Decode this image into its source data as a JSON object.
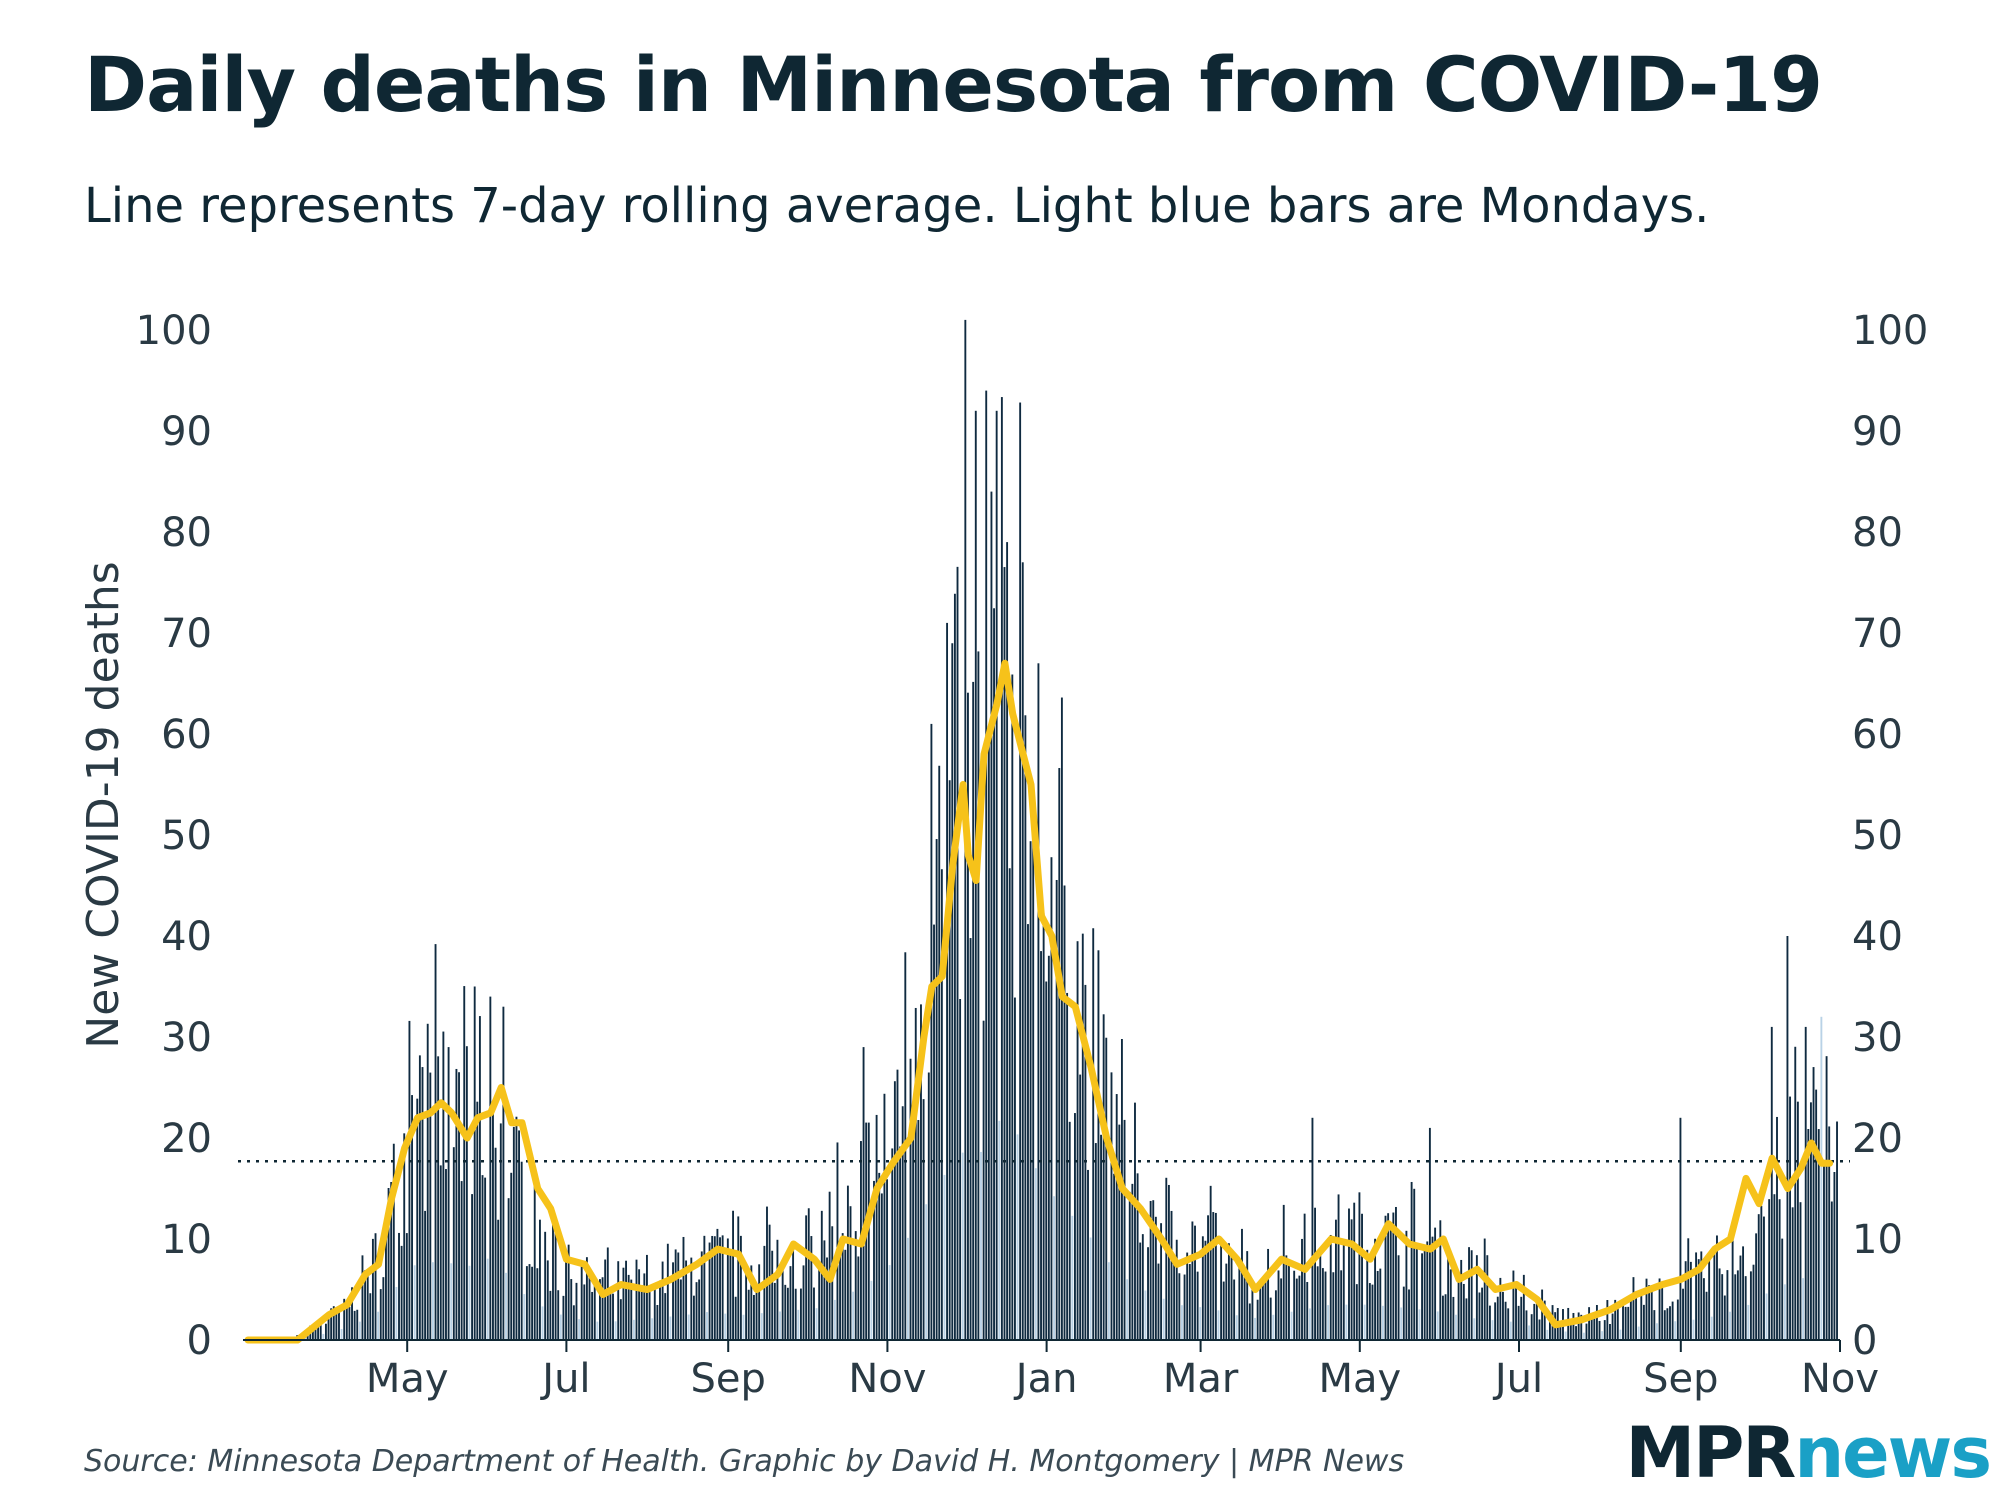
{
  "title": "Daily deaths in Minnesota from COVID-19",
  "subtitle": "Line represents 7-day rolling average. Light blue bars are Mondays.",
  "source": "Source: Minnesota Department of Health. Graphic by David H. Montgomery | MPR News",
  "logo": {
    "part1": "MPR",
    "part2": "news"
  },
  "colors": {
    "bar": "#0f2a40",
    "monday_bar": "#b9d2e6",
    "line": "#f6c21a",
    "text": "#0f2733",
    "reference_line": "#0f2733",
    "logo_news": "#1aa0c6"
  },
  "chart_data": {
    "type": "bar",
    "title": "Daily deaths in Minnesota from COVID-19",
    "subtitle": "Line represents 7-day rolling average. Light blue bars are Mondays.",
    "ylabel": "New COVID-19 deaths",
    "xlabel": "",
    "ylim": [
      0,
      100
    ],
    "y_ticks": [
      "0",
      "10",
      "20",
      "30",
      "40",
      "50",
      "60",
      "70",
      "80",
      "90",
      "100"
    ],
    "x_ticks": [
      {
        "label": "May",
        "date": "2020-05-01"
      },
      {
        "label": "Jul",
        "date": "2020-07-01"
      },
      {
        "label": "Sep",
        "date": "2020-09-01"
      },
      {
        "label": "Nov",
        "date": "2020-11-01"
      },
      {
        "label": "Jan",
        "date": "2021-01-01"
      },
      {
        "label": "Mar",
        "date": "2021-03-01"
      },
      {
        "label": "May",
        "date": "2021-05-01"
      },
      {
        "label": "Jul",
        "date": "2021-07-01"
      },
      {
        "label": "Sep",
        "date": "2021-09-01"
      },
      {
        "label": "Nov",
        "date": "2021-11-01"
      }
    ],
    "x_range": [
      "2020-03-01",
      "2021-11-01"
    ],
    "reference_line": 17.7,
    "right_axis": true,
    "grid": false,
    "series": [
      {
        "kind": "bars",
        "start_date": "2020-03-01",
        "monday_bars_highlighted": true,
        "estimated_profile": [
          [
            "2020-03-01",
            0
          ],
          [
            "2020-03-20",
            0.3
          ],
          [
            "2020-04-01",
            2
          ],
          [
            "2020-04-10",
            4
          ],
          [
            "2020-04-20",
            8
          ],
          [
            "2020-04-28",
            16
          ],
          [
            "2020-05-05",
            22
          ],
          [
            "2020-05-15",
            22
          ],
          [
            "2020-05-25",
            21
          ],
          [
            "2020-06-01",
            23
          ],
          [
            "2020-06-08",
            19
          ],
          [
            "2020-06-15",
            13
          ],
          [
            "2020-06-25",
            8
          ],
          [
            "2020-07-05",
            6
          ],
          [
            "2020-07-15",
            5
          ],
          [
            "2020-08-01",
            6
          ],
          [
            "2020-08-15",
            7
          ],
          [
            "2020-08-25",
            8
          ],
          [
            "2020-09-05",
            7
          ],
          [
            "2020-09-20",
            8
          ],
          [
            "2020-10-05",
            9
          ],
          [
            "2020-10-20",
            14
          ],
          [
            "2020-10-31",
            19
          ],
          [
            "2020-11-10",
            30
          ],
          [
            "2020-11-20",
            44
          ],
          [
            "2020-11-30",
            53
          ],
          [
            "2020-12-05",
            50
          ],
          [
            "2020-12-10",
            58
          ],
          [
            "2020-12-16",
            64
          ],
          [
            "2020-12-22",
            57
          ],
          [
            "2021-01-01",
            43
          ],
          [
            "2021-01-10",
            36
          ],
          [
            "2021-01-18",
            29
          ],
          [
            "2021-01-28",
            19
          ],
          [
            "2021-02-08",
            14
          ],
          [
            "2021-02-20",
            10
          ],
          [
            "2021-03-05",
            9
          ],
          [
            "2021-03-20",
            6
          ],
          [
            "2021-04-05",
            8
          ],
          [
            "2021-04-20",
            10
          ],
          [
            "2021-05-05",
            10
          ],
          [
            "2021-05-20",
            9
          ],
          [
            "2021-06-01",
            8
          ],
          [
            "2021-06-15",
            6
          ],
          [
            "2021-07-01",
            5
          ],
          [
            "2021-07-10",
            3
          ],
          [
            "2021-07-25",
            2
          ],
          [
            "2021-08-10",
            3
          ],
          [
            "2021-08-25",
            5
          ],
          [
            "2021-09-10",
            6
          ],
          [
            "2021-09-25",
            9
          ],
          [
            "2021-10-08",
            15
          ],
          [
            "2021-10-20",
            18
          ],
          [
            "2021-10-28",
            19
          ],
          [
            "2021-10-31",
            18
          ]
        ],
        "peaks": [
          [
            "2020-05-27",
            35
          ],
          [
            "2020-06-02",
            34
          ],
          [
            "2020-06-07",
            33
          ],
          [
            "2020-05-17",
            29
          ],
          [
            "2020-10-23",
            29
          ],
          [
            "2020-11-18",
            61
          ],
          [
            "2020-11-24",
            71
          ],
          [
            "2020-12-01",
            101
          ],
          [
            "2020-12-05",
            92
          ],
          [
            "2020-12-09",
            94
          ],
          [
            "2020-12-11",
            84
          ],
          [
            "2020-12-13",
            92
          ],
          [
            "2020-12-17",
            79
          ],
          [
            "2020-12-23",
            77
          ],
          [
            "2020-12-29",
            67
          ],
          [
            "2021-01-08",
            45
          ],
          [
            "2021-04-13",
            22
          ],
          [
            "2021-05-28",
            21
          ],
          [
            "2021-09-01",
            22
          ],
          [
            "2021-10-06",
            31
          ],
          [
            "2021-10-12",
            40
          ],
          [
            "2021-10-19",
            31
          ],
          [
            "2021-10-25",
            32
          ]
        ]
      },
      {
        "kind": "line",
        "label": "7-day rolling average",
        "points": [
          [
            "2020-03-01",
            0
          ],
          [
            "2020-03-20",
            0
          ],
          [
            "2020-04-01",
            2.5
          ],
          [
            "2020-04-08",
            3.5
          ],
          [
            "2020-04-15",
            6.5
          ],
          [
            "2020-04-20",
            7.5
          ],
          [
            "2020-04-25",
            14
          ],
          [
            "2020-04-30",
            19
          ],
          [
            "2020-05-05",
            22
          ],
          [
            "2020-05-10",
            22.5
          ],
          [
            "2020-05-14",
            23.5
          ],
          [
            "2020-05-18",
            22.5
          ],
          [
            "2020-05-24",
            20
          ],
          [
            "2020-05-28",
            22
          ],
          [
            "2020-06-02",
            22.5
          ],
          [
            "2020-06-06",
            25
          ],
          [
            "2020-06-10",
            21.5
          ],
          [
            "2020-06-14",
            21.5
          ],
          [
            "2020-06-20",
            15
          ],
          [
            "2020-06-25",
            13
          ],
          [
            "2020-07-01",
            8
          ],
          [
            "2020-07-08",
            7.5
          ],
          [
            "2020-07-15",
            4.5
          ],
          [
            "2020-07-22",
            5.5
          ],
          [
            "2020-08-01",
            5
          ],
          [
            "2020-08-10",
            6
          ],
          [
            "2020-08-20",
            7.5
          ],
          [
            "2020-08-28",
            9
          ],
          [
            "2020-09-05",
            8.5
          ],
          [
            "2020-09-12",
            5
          ],
          [
            "2020-09-20",
            6.5
          ],
          [
            "2020-09-26",
            9.5
          ],
          [
            "2020-10-04",
            8
          ],
          [
            "2020-10-10",
            6
          ],
          [
            "2020-10-15",
            10
          ],
          [
            "2020-10-22",
            9.5
          ],
          [
            "2020-10-28",
            15
          ],
          [
            "2020-11-03",
            17.5
          ],
          [
            "2020-11-10",
            20
          ],
          [
            "2020-11-15",
            30
          ],
          [
            "2020-11-18",
            35
          ],
          [
            "2020-11-22",
            36
          ],
          [
            "2020-11-26",
            47
          ],
          [
            "2020-11-30",
            55
          ],
          [
            "2020-12-02",
            48
          ],
          [
            "2020-12-05",
            45.5
          ],
          [
            "2020-12-08",
            58
          ],
          [
            "2020-12-13",
            63
          ],
          [
            "2020-12-16",
            67
          ],
          [
            "2020-12-19",
            62
          ],
          [
            "2020-12-22",
            59
          ],
          [
            "2020-12-26",
            55
          ],
          [
            "2020-12-30",
            42
          ],
          [
            "2021-01-03",
            40
          ],
          [
            "2021-01-07",
            34
          ],
          [
            "2021-01-12",
            33
          ],
          [
            "2021-01-18",
            27
          ],
          [
            "2021-01-24",
            20
          ],
          [
            "2021-01-30",
            15
          ],
          [
            "2021-02-06",
            13
          ],
          [
            "2021-02-14",
            10
          ],
          [
            "2021-02-20",
            7.5
          ],
          [
            "2021-03-01",
            8.5
          ],
          [
            "2021-03-08",
            10
          ],
          [
            "2021-03-15",
            8
          ],
          [
            "2021-03-22",
            5
          ],
          [
            "2021-04-01",
            8
          ],
          [
            "2021-04-10",
            7
          ],
          [
            "2021-04-20",
            10
          ],
          [
            "2021-04-28",
            9.5
          ],
          [
            "2021-05-05",
            8
          ],
          [
            "2021-05-12",
            11.5
          ],
          [
            "2021-05-20",
            9.5
          ],
          [
            "2021-05-28",
            9
          ],
          [
            "2021-06-02",
            10
          ],
          [
            "2021-06-08",
            6
          ],
          [
            "2021-06-15",
            7
          ],
          [
            "2021-06-22",
            5
          ],
          [
            "2021-06-30",
            5.5
          ],
          [
            "2021-07-08",
            4
          ],
          [
            "2021-07-15",
            1.5
          ],
          [
            "2021-07-25",
            2
          ],
          [
            "2021-08-05",
            3
          ],
          [
            "2021-08-15",
            4.5
          ],
          [
            "2021-08-25",
            5.5
          ],
          [
            "2021-09-01",
            6
          ],
          [
            "2021-09-08",
            7
          ],
          [
            "2021-09-14",
            9
          ],
          [
            "2021-09-20",
            10
          ],
          [
            "2021-09-26",
            16
          ],
          [
            "2021-10-01",
            13.5
          ],
          [
            "2021-10-06",
            18
          ],
          [
            "2021-10-12",
            15
          ],
          [
            "2021-10-17",
            17
          ],
          [
            "2021-10-21",
            19.5
          ],
          [
            "2021-10-25",
            17.5
          ],
          [
            "2021-10-28",
            17.5
          ]
        ]
      }
    ]
  }
}
